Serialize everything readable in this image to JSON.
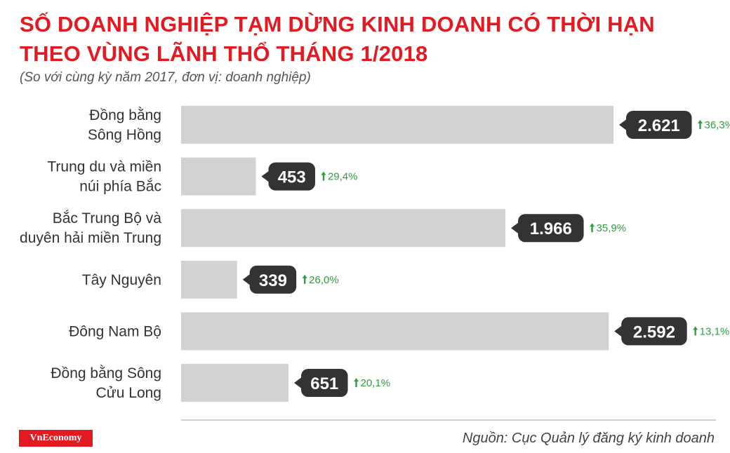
{
  "header": {
    "title_line1": "SỐ DOANH NGHIỆP TẠM DỪNG KINH DOANH CÓ THỜI HẠN",
    "title_line2": "THEO VÙNG LÃNH THỔ THÁNG 1/2018",
    "subtitle": "(So với cùng kỳ năm 2017, đơn vị: doanh nghiệp)"
  },
  "footer": {
    "brand": "VnEconomy",
    "source": "Nguồn: Cục Quản lý đăng ký kinh doanh"
  },
  "colors": {
    "title": "#e21b22",
    "bar": "#d2d2d2",
    "value_badge": "#333333",
    "change_positive": "#2e9e3e"
  },
  "chart_data": {
    "type": "bar",
    "orientation": "horizontal",
    "categories": [
      [
        "Đồng bằng",
        "Sông Hồng"
      ],
      [
        "Trung du và miền",
        "núi phía Bắc"
      ],
      [
        "Bắc Trung Bộ và",
        "duyên hải miền Trung"
      ],
      [
        "Tây Nguyên"
      ],
      [
        "Đông Nam Bộ"
      ],
      [
        "Đồng bằng Sông",
        "Cửu Long"
      ]
    ],
    "values": [
      2621,
      453,
      1966,
      339,
      2592,
      651
    ],
    "value_labels": [
      "2.621",
      "453",
      "1.966",
      "339",
      "2.592",
      "651"
    ],
    "changes": [
      "36,3%",
      "29,4%",
      "35,9%",
      "26,0%",
      "13,1%",
      "20,1%"
    ],
    "change_direction": [
      "up",
      "up",
      "up",
      "up",
      "up",
      "up"
    ],
    "xlim": [
      0,
      2621
    ],
    "grid": false,
    "legend": "none"
  }
}
